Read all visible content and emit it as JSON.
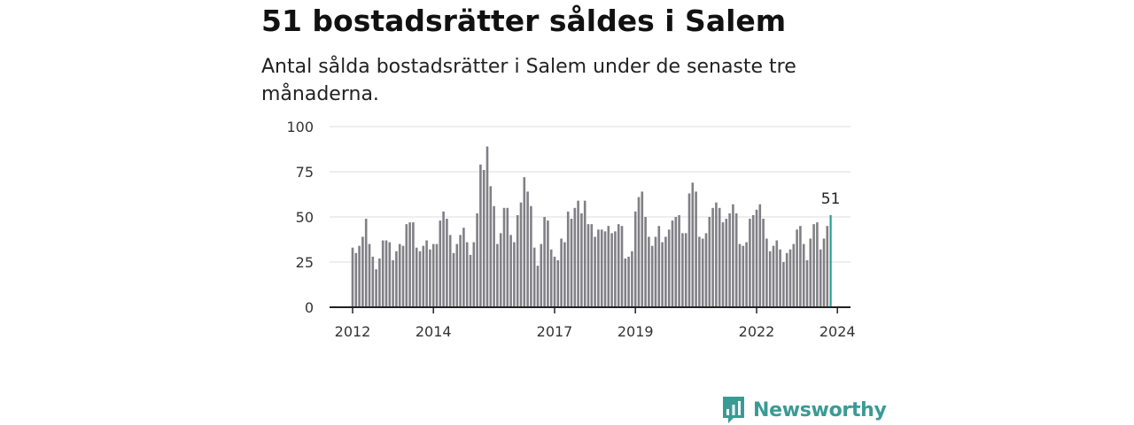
{
  "title": "51 bostadsrätter såldes i Salem",
  "subtitle": "Antal sålda bostadsrätter i Salem under de senaste tre månaderna.",
  "brand": "Newsworthy",
  "colors": {
    "bar": "#808085",
    "highlight": "#2a9d8f",
    "grid": "#dddddd",
    "axis": "#222222",
    "brand": "#3a9b95"
  },
  "chart_data": {
    "type": "bar",
    "x_start": "2012-01",
    "x_interval": "month",
    "values": [
      33,
      30,
      34,
      39,
      49,
      35,
      28,
      21,
      27,
      37,
      37,
      36,
      26,
      31,
      35,
      34,
      46,
      47,
      47,
      33,
      31,
      34,
      37,
      32,
      35,
      35,
      48,
      53,
      49,
      40,
      30,
      35,
      40,
      44,
      36,
      29,
      36,
      52,
      79,
      76,
      89,
      67,
      56,
      35,
      41,
      55,
      55,
      40,
      36,
      51,
      58,
      72,
      64,
      56,
      33,
      23,
      35,
      50,
      48,
      32,
      28,
      26,
      38,
      36,
      53,
      49,
      55,
      59,
      52,
      59,
      46,
      46,
      39,
      43,
      43,
      42,
      45,
      41,
      42,
      46,
      45,
      27,
      28,
      31,
      53,
      61,
      64,
      50,
      39,
      34,
      39,
      45,
      36,
      39,
      43,
      48,
      50,
      51,
      41,
      41,
      63,
      69,
      64,
      39,
      38,
      41,
      50,
      55,
      58,
      55,
      47,
      49,
      52,
      57,
      52,
      35,
      34,
      36,
      49,
      51,
      54,
      57,
      49,
      38,
      31,
      34,
      37,
      32,
      25,
      30,
      32,
      35,
      43,
      45,
      35,
      26,
      38,
      46,
      47,
      32,
      38,
      45,
      51
    ],
    "last_value_label": "51",
    "x_ticks": [
      "2012",
      "2014",
      "2017",
      "2019",
      "2022",
      "2024"
    ],
    "y_ticks": [
      "0",
      "25",
      "50",
      "75",
      "100"
    ],
    "ylim": [
      0,
      100
    ],
    "grid": true,
    "highlight": "last"
  }
}
